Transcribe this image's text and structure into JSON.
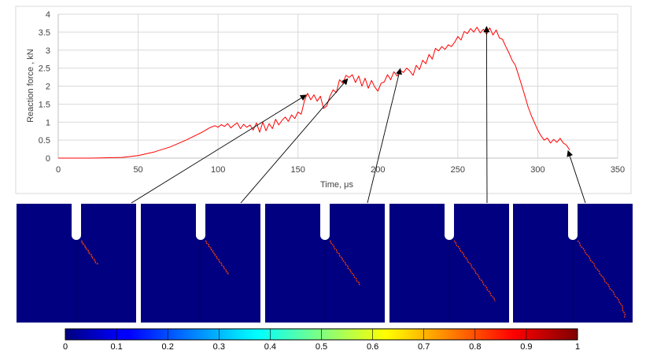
{
  "chart_data": {
    "type": "line",
    "xlabel": "Time, μs",
    "ylabel": "Reaction force , kN",
    "xlim": [
      0,
      350
    ],
    "ylim": [
      0,
      4
    ],
    "xticks": [
      "0",
      "50",
      "100",
      "150",
      "200",
      "250",
      "300",
      "350"
    ],
    "yticks": [
      "0",
      "0.5",
      "1",
      "1.5",
      "2",
      "2.5",
      "3",
      "3.5",
      "4"
    ],
    "grid": true,
    "series": [
      {
        "color": "#ff0000",
        "x": [
          0,
          20,
          40,
          50,
          60,
          70,
          80,
          90,
          95,
          98,
          100,
          102,
          104,
          106,
          108,
          110,
          112,
          114,
          116,
          118,
          120,
          122,
          124,
          126,
          128,
          130,
          132,
          134,
          136,
          138,
          140,
          142,
          144,
          146,
          148,
          150,
          152,
          154,
          155,
          156,
          158,
          160,
          162,
          164,
          166,
          168,
          170,
          172,
          174,
          176,
          178,
          180,
          182,
          184,
          186,
          188,
          190,
          192,
          194,
          196,
          198,
          200,
          202,
          204,
          206,
          208,
          210,
          212,
          214,
          216,
          218,
          220,
          222,
          224,
          226,
          228,
          230,
          232,
          234,
          236,
          238,
          240,
          242,
          244,
          246,
          248,
          250,
          252,
          254,
          256,
          258,
          260,
          262,
          264,
          266,
          268,
          270,
          272,
          274,
          276,
          278,
          280,
          282,
          284,
          286,
          288,
          290,
          292,
          294,
          296,
          298,
          300,
          302,
          304,
          306,
          308,
          310,
          312,
          314,
          316,
          318,
          320
        ],
        "values": [
          0,
          0,
          0.02,
          0.07,
          0.17,
          0.31,
          0.5,
          0.72,
          0.85,
          0.9,
          0.86,
          0.93,
          0.88,
          0.96,
          0.84,
          0.92,
          0.98,
          0.82,
          0.94,
          0.86,
          0.92,
          0.78,
          0.98,
          0.72,
          1.0,
          0.76,
          0.96,
          0.82,
          1.08,
          0.92,
          1.05,
          1.14,
          1.02,
          1.2,
          1.1,
          1.28,
          1.22,
          1.58,
          1.7,
          1.8,
          1.62,
          1.76,
          1.58,
          1.72,
          1.38,
          1.45,
          1.72,
          1.9,
          1.82,
          2.18,
          2.08,
          2.3,
          2.24,
          2.32,
          2.1,
          2.28,
          2.0,
          2.22,
          1.94,
          2.16,
          1.98,
          1.86,
          2.08,
          2.12,
          2.32,
          2.18,
          2.4,
          2.28,
          2.44,
          2.38,
          2.5,
          2.42,
          2.3,
          2.58,
          2.46,
          2.72,
          2.62,
          2.88,
          2.75,
          3.05,
          2.98,
          3.1,
          3.02,
          3.15,
          3.1,
          3.22,
          3.38,
          3.28,
          3.52,
          3.46,
          3.6,
          3.5,
          3.64,
          3.48,
          3.58,
          3.44,
          3.62,
          3.42,
          3.56,
          3.34,
          3.3,
          3.1,
          2.92,
          2.72,
          2.58,
          2.3,
          2.02,
          1.72,
          1.42,
          1.18,
          0.98,
          0.78,
          0.62,
          0.5,
          0.56,
          0.42,
          0.52,
          0.44,
          0.55,
          0.42,
          0.36,
          0.22
        ]
      }
    ],
    "annotations": [
      {
        "from_panel": 1,
        "to": [
          155,
          1.75
        ]
      },
      {
        "from_panel": 2,
        "to": [
          181,
          2.2
        ]
      },
      {
        "from_panel": 3,
        "to": [
          214,
          2.48
        ]
      },
      {
        "from_panel": 4,
        "to": [
          268,
          3.65
        ]
      },
      {
        "from_panel": 5,
        "to": [
          319,
          0.2
        ]
      }
    ],
    "panels": [
      {
        "crack_length": 0.3
      },
      {
        "crack_length": 0.42
      },
      {
        "crack_length": 0.55
      },
      {
        "crack_length": 0.75
      },
      {
        "crack_length": 0.95
      }
    ],
    "colorbar": {
      "min": 0,
      "max": 1,
      "ticks": [
        "0",
        "0.1",
        "0.2",
        "0.3",
        "0.4",
        "0.5",
        "0.6",
        "0.7",
        "0.8",
        "0.9",
        "1"
      ],
      "colormap": "jet"
    },
    "colors": {
      "line": "#ff0000",
      "panel_fill": "#000080",
      "crack": "#ff4000",
      "grid": "#d9d9d9",
      "arrow": "#000000"
    }
  }
}
